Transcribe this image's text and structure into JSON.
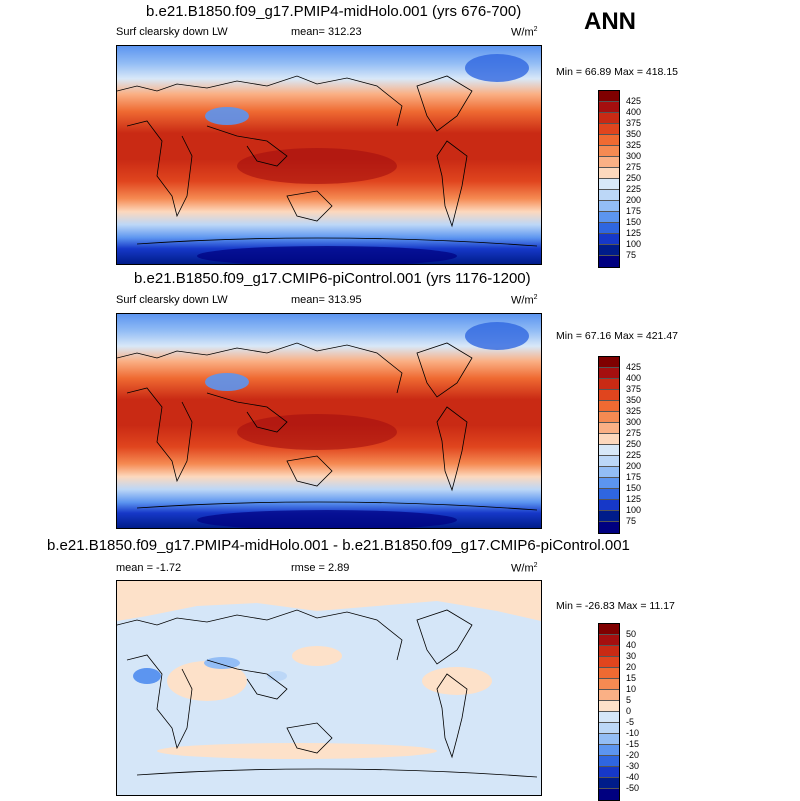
{
  "season": "ANN",
  "panels": [
    {
      "title": "b.e21.B1850.f09_g17.PMIP4-midHolo.001 (yrs 676-700)",
      "left_label": "Surf clearsky down LW",
      "center_label": "mean= 312.23",
      "units": "W/m",
      "units_sup": "2",
      "minmax": "Min =  66.89 Max = 418.15",
      "colorbar": [
        "425",
        "400",
        "375",
        "350",
        "325",
        "300",
        "275",
        "250",
        "225",
        "200",
        "175",
        "150",
        "125",
        "100",
        "75"
      ]
    },
    {
      "title": "b.e21.B1850.f09_g17.CMIP6-piControl.001 (yrs 1176-1200)",
      "left_label": "Surf clearsky down LW",
      "center_label": "mean= 313.95",
      "units": "W/m",
      "units_sup": "2",
      "minmax": "Min =  67.16 Max = 421.47",
      "colorbar": [
        "425",
        "400",
        "375",
        "350",
        "325",
        "300",
        "275",
        "250",
        "225",
        "200",
        "175",
        "150",
        "125",
        "100",
        "75"
      ]
    },
    {
      "title": "b.e21.B1850.f09_g17.PMIP4-midHolo.001 - b.e21.B1850.f09_g17.CMIP6-piControl.001",
      "left_label": "mean =  -1.72",
      "center_label": "rmse =   2.89",
      "units": "W/m",
      "units_sup": "2",
      "minmax": "Min = -26.83 Max =  11.17",
      "colorbar": [
        "50",
        "40",
        "30",
        "20",
        "15",
        "10",
        "5",
        "0",
        "-5",
        "-10",
        "-15",
        "-20",
        "-30",
        "-40",
        "-50"
      ]
    }
  ],
  "colors": {
    "lw_scale": [
      "#7f0000",
      "#a50f0f",
      "#c92a14",
      "#e0451e",
      "#ef6a32",
      "#f58a52",
      "#fab085",
      "#fdd8bd",
      "#d8e8f8",
      "#bcd7f7",
      "#93bdf5",
      "#5c95f0",
      "#2f66e0",
      "#1638c8",
      "#001c8a",
      "#000080"
    ],
    "diff_scale": [
      "#7f0000",
      "#a50f0f",
      "#c92a14",
      "#e0451e",
      "#ef6a32",
      "#f58a52",
      "#fab085",
      "#fde1c9",
      "#d5e6f8",
      "#bcd7f7",
      "#93bdf5",
      "#5c95f0",
      "#2f66e0",
      "#1638c8",
      "#001c8a",
      "#000080"
    ]
  }
}
